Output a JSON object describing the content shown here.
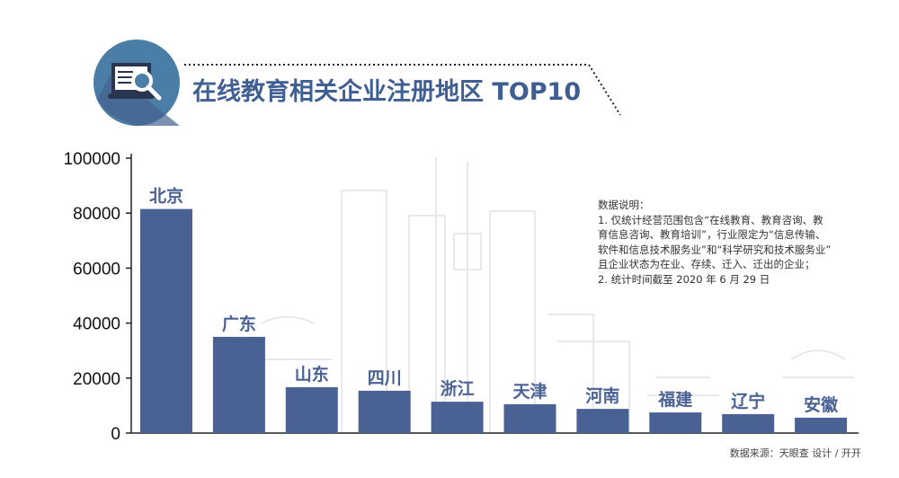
{
  "title": "在线教育相关企业注册地区 TOP10",
  "icon": "laptop-search-icon",
  "note": {
    "heading": "数据说明：",
    "lines": [
      "1. 仅统计经营范围包含“在线教育、教育咨询、教",
      "育信息咨询、教育培训”，行业限定为“信息传输、",
      "软件和信息技术服务业”和“科学研究和技术服务业”",
      "且企业状态为在业、存续、迁入、迁出的企业；",
      "2. 统计时间截至 2020 年 6 月 29 日"
    ]
  },
  "footer": "数据来源：天眼查   设计 / 开开",
  "colors": {
    "bar": "#4a6293",
    "title": "#3f5f93",
    "icon_circle": "#4a7ea6"
  },
  "chart_data": {
    "type": "bar",
    "title": "在线教育相关企业注册地区 TOP10",
    "categories": [
      "北京",
      "广东",
      "山东",
      "四川",
      "浙江",
      "天津",
      "河南",
      "福建",
      "辽宁",
      "安徽"
    ],
    "values": [
      81500,
      35000,
      16700,
      15400,
      11400,
      10500,
      8800,
      7500,
      6900,
      5600
    ],
    "ylim": [
      0,
      100000
    ],
    "yticks": [
      "0",
      "20000",
      "40000",
      "60000",
      "80000",
      "100000"
    ],
    "grid": false
  }
}
